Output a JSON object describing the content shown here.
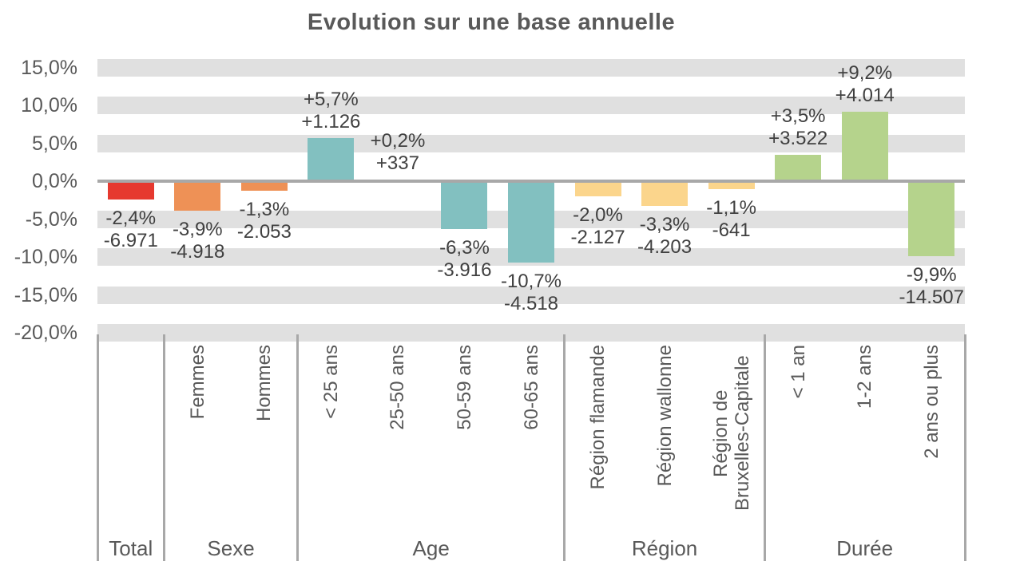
{
  "title": "Evolution sur une base annuelle",
  "colors": {
    "total": "#E6392F",
    "sexe": "#EE9156",
    "age": "#82C0C0",
    "region": "#FBD58C",
    "duree": "#B5D38C",
    "grid_band": "#E0E0E0",
    "axis_line": "#A8A8A8",
    "label_text": "#404040",
    "axis_text": "#595959"
  },
  "chart_data": {
    "type": "bar",
    "title": "Evolution sur une base annuelle",
    "value_format": "percent",
    "ylim": [
      -20,
      15
    ],
    "ytick_step": 5,
    "yticks": [
      "15,0%",
      "10,0%",
      "5,0%",
      "0,0%",
      "-5,0%",
      "-10,0%",
      "-15,0%",
      "-20,0%"
    ],
    "grid": "horizontal-bands",
    "legend": "none",
    "groups": [
      {
        "label": "Total",
        "color_key": "total",
        "bars": [
          {
            "category": "",
            "pct": -2.4,
            "abs": -6971,
            "pct_label": "-2,4%",
            "abs_label": "-6.971"
          }
        ]
      },
      {
        "label": "Sexe",
        "color_key": "sexe",
        "bars": [
          {
            "category": "Femmes",
            "pct": -3.9,
            "abs": -4918,
            "pct_label": "-3,9%",
            "abs_label": "-4.918"
          },
          {
            "category": "Hommes",
            "pct": -1.3,
            "abs": -2053,
            "pct_label": "-1,3%",
            "abs_label": "-2.053"
          }
        ]
      },
      {
        "label": "Age",
        "color_key": "age",
        "bars": [
          {
            "category": "< 25 ans",
            "pct": 5.7,
            "abs": 1126,
            "pct_label": "+5,7%",
            "abs_label": "+1.126"
          },
          {
            "category": "25-50 ans",
            "pct": 0.2,
            "abs": 337,
            "pct_label": "+0,2%",
            "abs_label": "+337"
          },
          {
            "category": "50-59 ans",
            "pct": -6.3,
            "abs": -3916,
            "pct_label": "-6,3%",
            "abs_label": "-3.916"
          },
          {
            "category": "60-65 ans",
            "pct": -10.7,
            "abs": -4518,
            "pct_label": "-10,7%",
            "abs_label": "-4.518"
          }
        ]
      },
      {
        "label": "Région",
        "color_key": "region",
        "bars": [
          {
            "category": "Région flamande",
            "pct": -2.0,
            "abs": -2127,
            "pct_label": "-2,0%",
            "abs_label": "-2.127"
          },
          {
            "category": "Région wallonne",
            "pct": -3.3,
            "abs": -4203,
            "pct_label": "-3,3%",
            "abs_label": "-4.203"
          },
          {
            "category": "Région de Bruxelles-Capitale",
            "pct": -1.1,
            "abs": -641,
            "pct_label": "-1,1%",
            "abs_label": "-641"
          }
        ]
      },
      {
        "label": "Durée",
        "color_key": "duree",
        "bars": [
          {
            "category": "< 1 an",
            "pct": 3.5,
            "abs": 3522,
            "pct_label": "+3,5%",
            "abs_label": "+3.522"
          },
          {
            "category": "1-2 ans",
            "pct": 9.2,
            "abs": 4014,
            "pct_label": "+9,2%",
            "abs_label": "+4.014"
          },
          {
            "category": "2 ans ou plus",
            "pct": -9.9,
            "abs": -14507,
            "pct_label": "-9,9%",
            "abs_label": "-14.507"
          }
        ]
      }
    ]
  }
}
